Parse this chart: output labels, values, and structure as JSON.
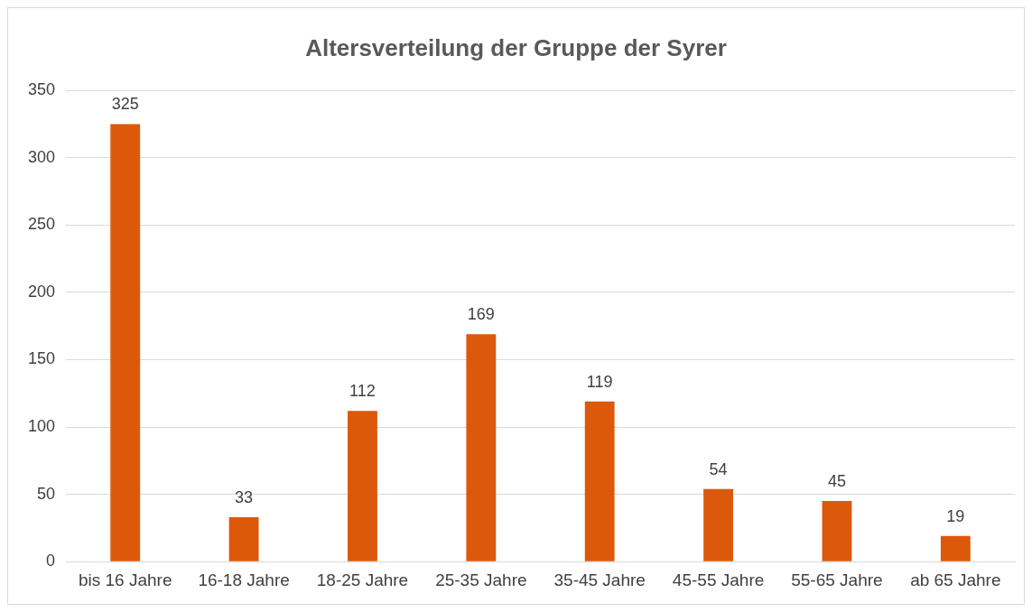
{
  "chart_data": {
    "type": "bar",
    "title": "Altersverteilung der Gruppe der Syrer",
    "categories": [
      "bis 16 Jahre",
      "16-18 Jahre",
      "18-25 Jahre",
      "25-35 Jahre",
      "35-45 Jahre",
      "45-55 Jahre",
      "55-65 Jahre",
      "ab 65 Jahre"
    ],
    "values": [
      325,
      33,
      112,
      169,
      119,
      54,
      45,
      19
    ],
    "color": "#dc590c",
    "ylim": [
      0,
      350
    ],
    "yticks": [
      0,
      50,
      100,
      150,
      200,
      250,
      300,
      350
    ],
    "grid": "y",
    "legend": false,
    "data_labels": true
  }
}
